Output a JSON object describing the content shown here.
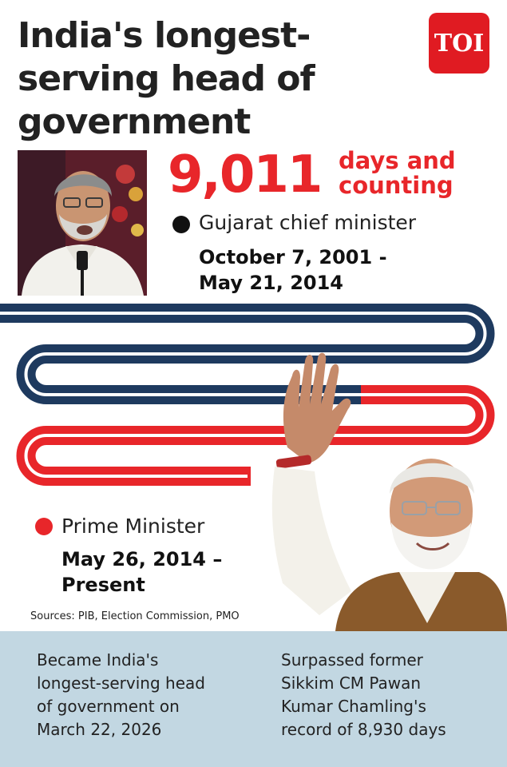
{
  "headline": {
    "lines": [
      "India's longest-",
      "serving head of",
      "government"
    ]
  },
  "logo": {
    "text": "TOI"
  },
  "tenure": {
    "days": "9,011",
    "days_caption_lines": [
      "days and",
      "counting"
    ]
  },
  "gujarat": {
    "role": "Gujarat chief minister",
    "date_lines": [
      "October 7, 2001  -",
      "May 21, 2014"
    ]
  },
  "pm": {
    "role": "Prime Minister",
    "date_lines": [
      "May 26, 2014 –",
      "Present"
    ]
  },
  "sources": "Sources: PIB, Election Commission, PMO",
  "facts": [
    {
      "lines": [
        "Became India's",
        "longest-serving head",
        "of government on",
        "March 22, 2026"
      ]
    },
    {
      "lines": [
        "Surpassed former",
        "Sikkim CM Pawan",
        "Kumar Chamling's",
        "record of 8,930 days"
      ]
    }
  ],
  "colors": {
    "navy": "#1e3a5f",
    "red": "#e8262a",
    "dark_text": "#222222",
    "footer_bg": "#c2d7e2",
    "logo_red": "#e01b22"
  },
  "icons": {
    "gujarat_marker": "black-dot-icon",
    "pm_marker": "red-dot-icon"
  }
}
